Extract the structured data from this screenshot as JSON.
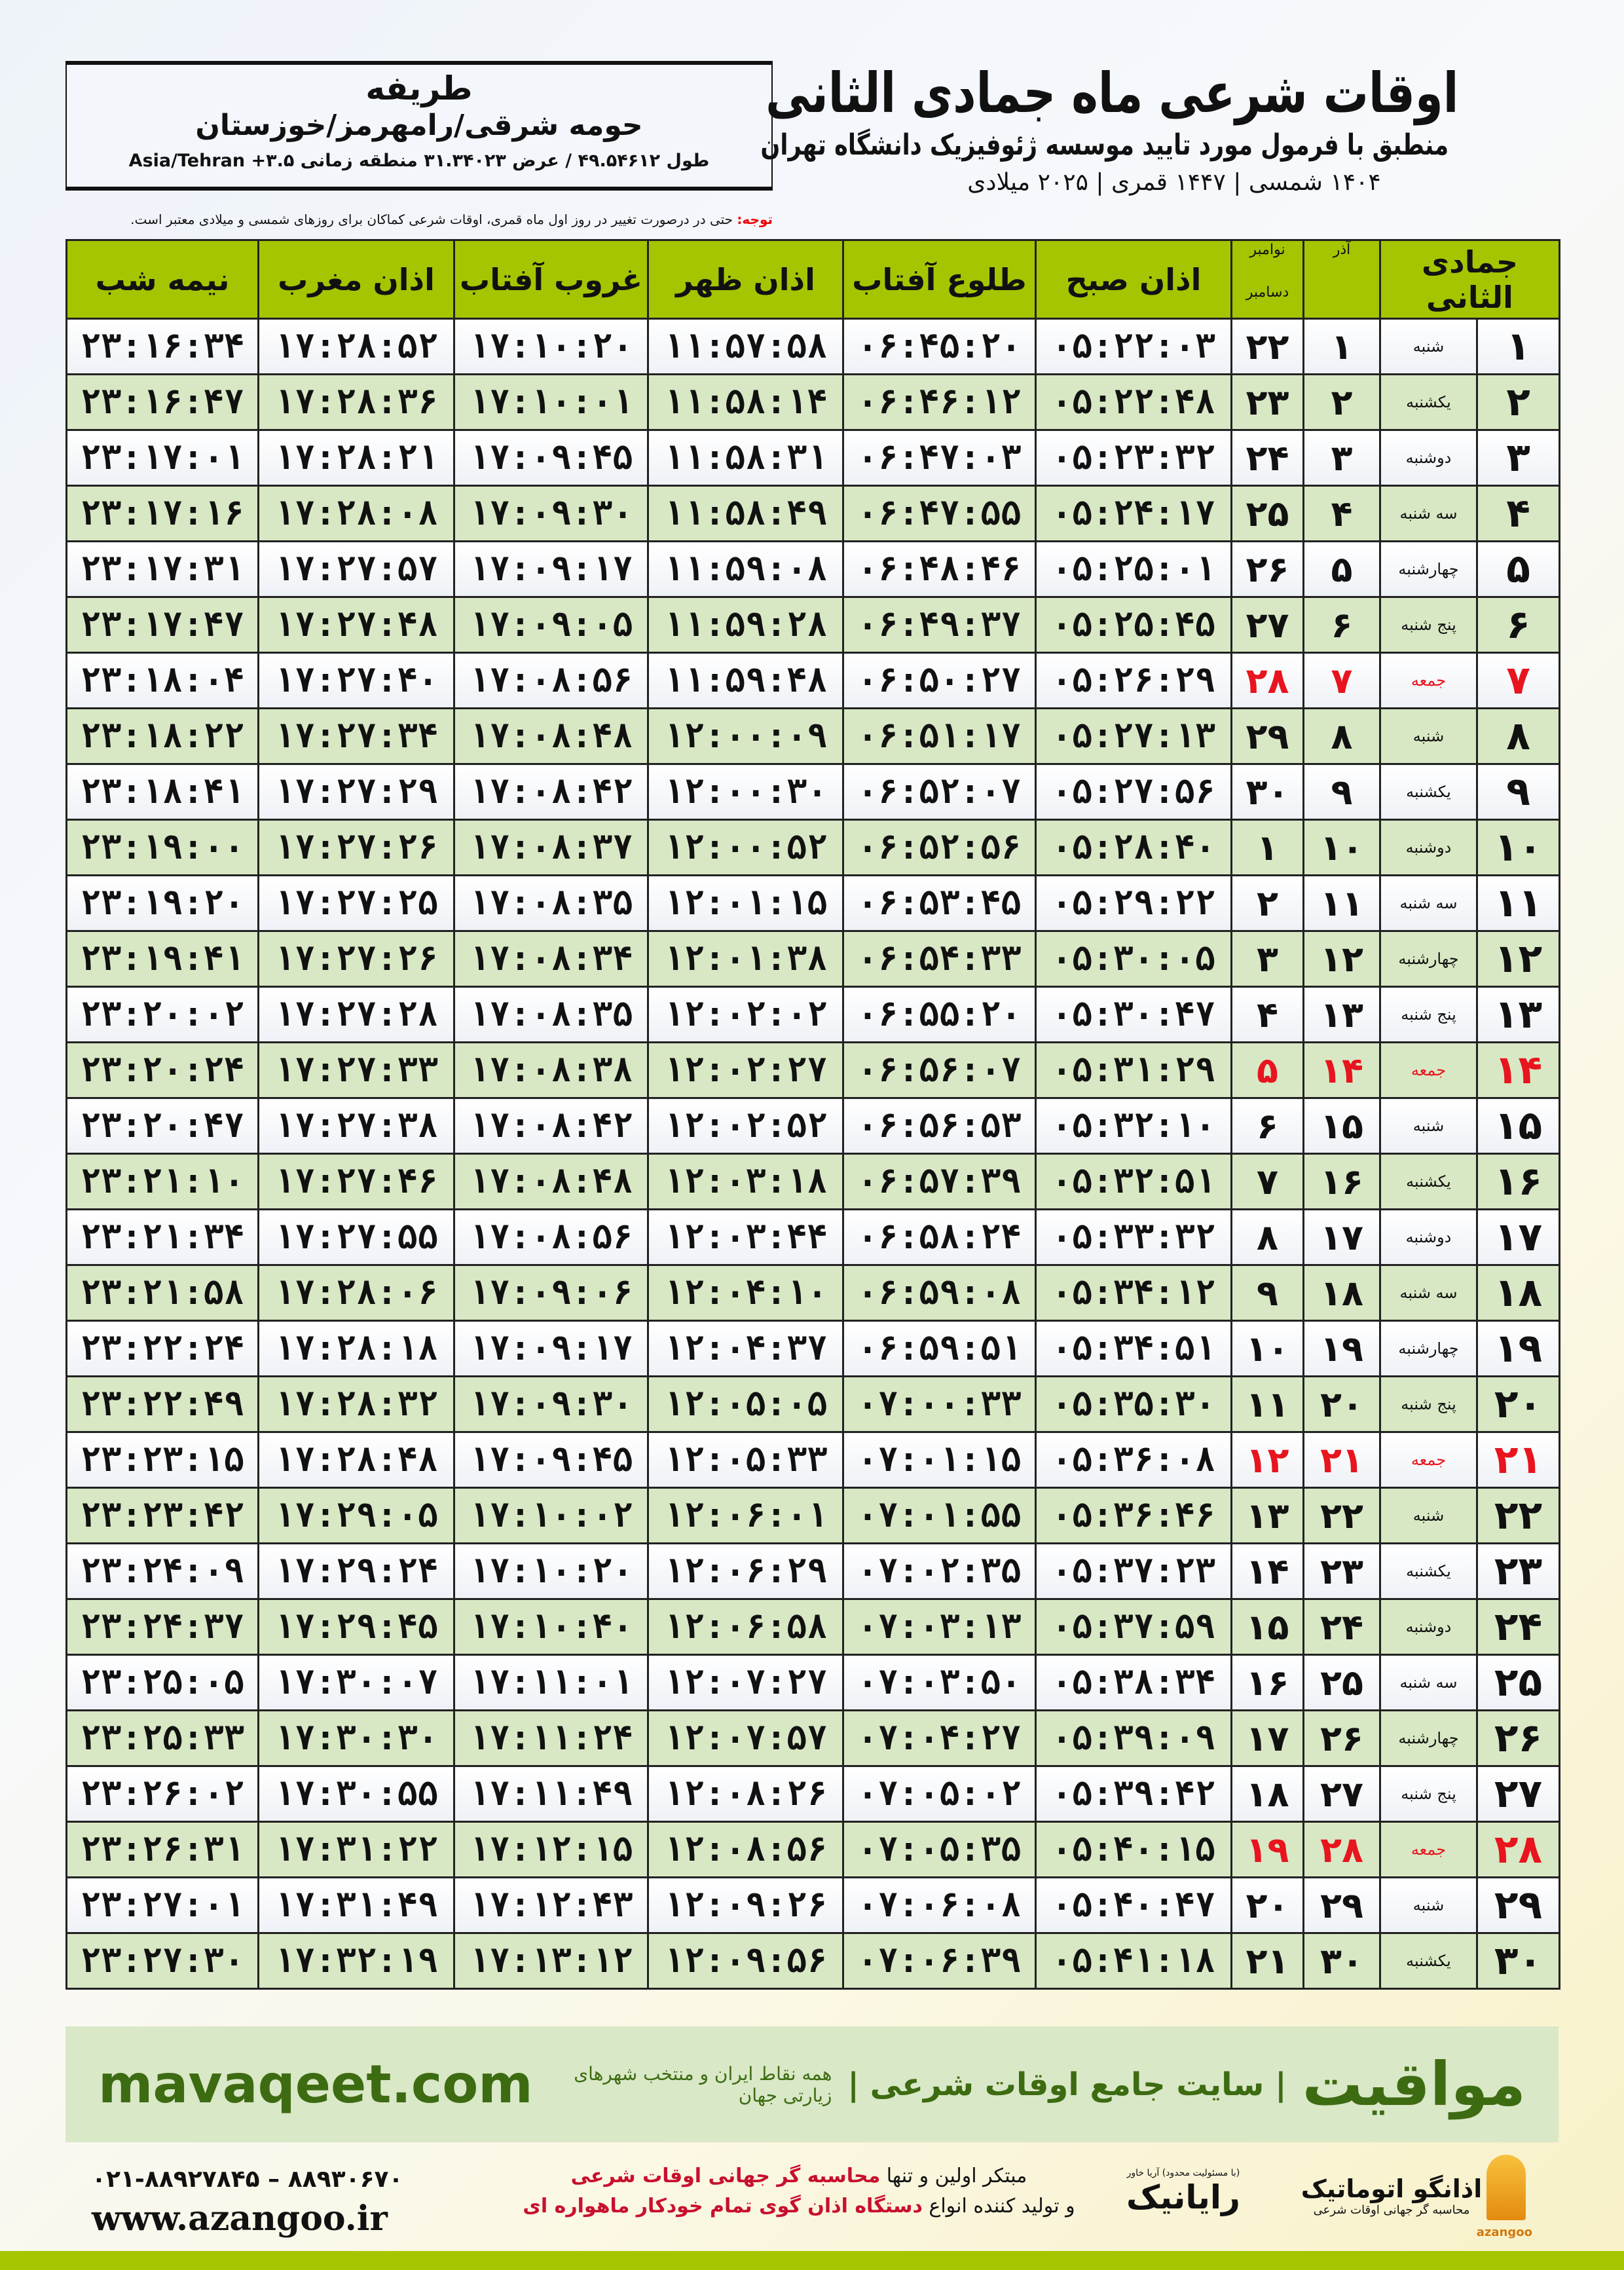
{
  "location": {
    "city": "طریفه",
    "region": "حومه شرقی/رامهرمز/خوزستان",
    "coords": "طول ۴۹.۵۴۶۱۲ / عرض ۳۱.۳۴۰۲۳ منطقه زمانی ۳.۵+ Asia/Tehran"
  },
  "title": {
    "main": "اوقات شرعی ماه جمادی الثانی",
    "subtitle": "منطبق با فرمول مورد تایید موسسه ژئوفیزیک دانشگاه تهران",
    "years": "۱۴۰۴ شمسی | ۱۴۴۷ قمری | ۲۰۲۵ میلادی"
  },
  "note": {
    "label": "توجه:",
    "text": " حتی در درصورت تغییر در روز اول ماه قمری، اوقات شرعی کماکان برای روزهای شمسی و میلادی معتبر است."
  },
  "table": {
    "headers": {
      "hijri": "جمادی الثانی",
      "azar": "آذر",
      "nov": "نوامبر",
      "dec": "دسامبر",
      "fajr": "اذان صبح",
      "sunrise": "طلوع آفتاب",
      "dhuhr": "اذان ظهر",
      "sunset": "غروب آفتاب",
      "maghrib": "اذان مغرب",
      "midnight": "نیمه شب"
    },
    "friday_color": "#e8141e",
    "rows": [
      [
        "۱",
        "شنبه",
        "۱",
        "۲۲",
        "۰۵:۲۲:۰۳",
        "۰۶:۴۵:۲۰",
        "۱۱:۵۷:۵۸",
        "۱۷:۱۰:۲۰",
        "۱۷:۲۸:۵۲",
        "۲۳:۱۶:۳۴"
      ],
      [
        "۲",
        "یکشنبه",
        "۲",
        "۲۳",
        "۰۵:۲۲:۴۸",
        "۰۶:۴۶:۱۲",
        "۱۱:۵۸:۱۴",
        "۱۷:۱۰:۰۱",
        "۱۷:۲۸:۳۶",
        "۲۳:۱۶:۴۷"
      ],
      [
        "۳",
        "دوشنبه",
        "۳",
        "۲۴",
        "۰۵:۲۳:۳۲",
        "۰۶:۴۷:۰۳",
        "۱۱:۵۸:۳۱",
        "۱۷:۰۹:۴۵",
        "۱۷:۲۸:۲۱",
        "۲۳:۱۷:۰۱"
      ],
      [
        "۴",
        "سه شنبه",
        "۴",
        "۲۵",
        "۰۵:۲۴:۱۷",
        "۰۶:۴۷:۵۵",
        "۱۱:۵۸:۴۹",
        "۱۷:۰۹:۳۰",
        "۱۷:۲۸:۰۸",
        "۲۳:۱۷:۱۶"
      ],
      [
        "۵",
        "چهارشنبه",
        "۵",
        "۲۶",
        "۰۵:۲۵:۰۱",
        "۰۶:۴۸:۴۶",
        "۱۱:۵۹:۰۸",
        "۱۷:۰۹:۱۷",
        "۱۷:۲۷:۵۷",
        "۲۳:۱۷:۳۱"
      ],
      [
        "۶",
        "پنج شنبه",
        "۶",
        "۲۷",
        "۰۵:۲۵:۴۵",
        "۰۶:۴۹:۳۷",
        "۱۱:۵۹:۲۸",
        "۱۷:۰۹:۰۵",
        "۱۷:۲۷:۴۸",
        "۲۳:۱۷:۴۷"
      ],
      [
        "۷",
        "جمعه",
        "۷",
        "۲۸",
        "۰۵:۲۶:۲۹",
        "۰۶:۵۰:۲۷",
        "۱۱:۵۹:۴۸",
        "۱۷:۰۸:۵۶",
        "۱۷:۲۷:۴۰",
        "۲۳:۱۸:۰۴"
      ],
      [
        "۸",
        "شنبه",
        "۸",
        "۲۹",
        "۰۵:۲۷:۱۳",
        "۰۶:۵۱:۱۷",
        "۱۲:۰۰:۰۹",
        "۱۷:۰۸:۴۸",
        "۱۷:۲۷:۳۴",
        "۲۳:۱۸:۲۲"
      ],
      [
        "۹",
        "یکشنبه",
        "۹",
        "۳۰",
        "۰۵:۲۷:۵۶",
        "۰۶:۵۲:۰۷",
        "۱۲:۰۰:۳۰",
        "۱۷:۰۸:۴۲",
        "۱۷:۲۷:۲۹",
        "۲۳:۱۸:۴۱"
      ],
      [
        "۱۰",
        "دوشنبه",
        "۱۰",
        "۱",
        "۰۵:۲۸:۴۰",
        "۰۶:۵۲:۵۶",
        "۱۲:۰۰:۵۲",
        "۱۷:۰۸:۳۷",
        "۱۷:۲۷:۲۶",
        "۲۳:۱۹:۰۰"
      ],
      [
        "۱۱",
        "سه شنبه",
        "۱۱",
        "۲",
        "۰۵:۲۹:۲۲",
        "۰۶:۵۳:۴۵",
        "۱۲:۰۱:۱۵",
        "۱۷:۰۸:۳۵",
        "۱۷:۲۷:۲۵",
        "۲۳:۱۹:۲۰"
      ],
      [
        "۱۲",
        "چهارشنبه",
        "۱۲",
        "۳",
        "۰۵:۳۰:۰۵",
        "۰۶:۵۴:۳۳",
        "۱۲:۰۱:۳۸",
        "۱۷:۰۸:۳۴",
        "۱۷:۲۷:۲۶",
        "۲۳:۱۹:۴۱"
      ],
      [
        "۱۳",
        "پنج شنبه",
        "۱۳",
        "۴",
        "۰۵:۳۰:۴۷",
        "۰۶:۵۵:۲۰",
        "۱۲:۰۲:۰۲",
        "۱۷:۰۸:۳۵",
        "۱۷:۲۷:۲۸",
        "۲۳:۲۰:۰۲"
      ],
      [
        "۱۴",
        "جمعه",
        "۱۴",
        "۵",
        "۰۵:۳۱:۲۹",
        "۰۶:۵۶:۰۷",
        "۱۲:۰۲:۲۷",
        "۱۷:۰۸:۳۸",
        "۱۷:۲۷:۳۳",
        "۲۳:۲۰:۲۴"
      ],
      [
        "۱۵",
        "شنبه",
        "۱۵",
        "۶",
        "۰۵:۳۲:۱۰",
        "۰۶:۵۶:۵۳",
        "۱۲:۰۲:۵۲",
        "۱۷:۰۸:۴۲",
        "۱۷:۲۷:۳۸",
        "۲۳:۲۰:۴۷"
      ],
      [
        "۱۶",
        "یکشنبه",
        "۱۶",
        "۷",
        "۰۵:۳۲:۵۱",
        "۰۶:۵۷:۳۹",
        "۱۲:۰۳:۱۸",
        "۱۷:۰۸:۴۸",
        "۱۷:۲۷:۴۶",
        "۲۳:۲۱:۱۰"
      ],
      [
        "۱۷",
        "دوشنبه",
        "۱۷",
        "۸",
        "۰۵:۳۳:۳۲",
        "۰۶:۵۸:۲۴",
        "۱۲:۰۳:۴۴",
        "۱۷:۰۸:۵۶",
        "۱۷:۲۷:۵۵",
        "۲۳:۲۱:۳۴"
      ],
      [
        "۱۸",
        "سه شنبه",
        "۱۸",
        "۹",
        "۰۵:۳۴:۱۲",
        "۰۶:۵۹:۰۸",
        "۱۲:۰۴:۱۰",
        "۱۷:۰۹:۰۶",
        "۱۷:۲۸:۰۶",
        "۲۳:۲۱:۵۸"
      ],
      [
        "۱۹",
        "چهارشنبه",
        "۱۹",
        "۱۰",
        "۰۵:۳۴:۵۱",
        "۰۶:۵۹:۵۱",
        "۱۲:۰۴:۳۷",
        "۱۷:۰۹:۱۷",
        "۱۷:۲۸:۱۸",
        "۲۳:۲۲:۲۴"
      ],
      [
        "۲۰",
        "پنج شنبه",
        "۲۰",
        "۱۱",
        "۰۵:۳۵:۳۰",
        "۰۷:۰۰:۳۳",
        "۱۲:۰۵:۰۵",
        "۱۷:۰۹:۳۰",
        "۱۷:۲۸:۳۲",
        "۲۳:۲۲:۴۹"
      ],
      [
        "۲۱",
        "جمعه",
        "۲۱",
        "۱۲",
        "۰۵:۳۶:۰۸",
        "۰۷:۰۱:۱۵",
        "۱۲:۰۵:۳۳",
        "۱۷:۰۹:۴۵",
        "۱۷:۲۸:۴۸",
        "۲۳:۲۳:۱۵"
      ],
      [
        "۲۲",
        "شنبه",
        "۲۲",
        "۱۳",
        "۰۵:۳۶:۴۶",
        "۰۷:۰۱:۵۵",
        "۱۲:۰۶:۰۱",
        "۱۷:۱۰:۰۲",
        "۱۷:۲۹:۰۵",
        "۲۳:۲۳:۴۲"
      ],
      [
        "۲۳",
        "یکشنبه",
        "۲۳",
        "۱۴",
        "۰۵:۳۷:۲۳",
        "۰۷:۰۲:۳۵",
        "۱۲:۰۶:۲۹",
        "۱۷:۱۰:۲۰",
        "۱۷:۲۹:۲۴",
        "۲۳:۲۴:۰۹"
      ],
      [
        "۲۴",
        "دوشنبه",
        "۲۴",
        "۱۵",
        "۰۵:۳۷:۵۹",
        "۰۷:۰۳:۱۳",
        "۱۲:۰۶:۵۸",
        "۱۷:۱۰:۴۰",
        "۱۷:۲۹:۴۵",
        "۲۳:۲۴:۳۷"
      ],
      [
        "۲۵",
        "سه شنبه",
        "۲۵",
        "۱۶",
        "۰۵:۳۸:۳۴",
        "۰۷:۰۳:۵۰",
        "۱۲:۰۷:۲۷",
        "۱۷:۱۱:۰۱",
        "۱۷:۳۰:۰۷",
        "۲۳:۲۵:۰۵"
      ],
      [
        "۲۶",
        "چهارشنبه",
        "۲۶",
        "۱۷",
        "۰۵:۳۹:۰۹",
        "۰۷:۰۴:۲۷",
        "۱۲:۰۷:۵۷",
        "۱۷:۱۱:۲۴",
        "۱۷:۳۰:۳۰",
        "۲۳:۲۵:۳۳"
      ],
      [
        "۲۷",
        "پنج شنبه",
        "۲۷",
        "۱۸",
        "۰۵:۳۹:۴۲",
        "۰۷:۰۵:۰۲",
        "۱۲:۰۸:۲۶",
        "۱۷:۱۱:۴۹",
        "۱۷:۳۰:۵۵",
        "۲۳:۲۶:۰۲"
      ],
      [
        "۲۸",
        "جمعه",
        "۲۸",
        "۱۹",
        "۰۵:۴۰:۱۵",
        "۰۷:۰۵:۳۵",
        "۱۲:۰۸:۵۶",
        "۱۷:۱۲:۱۵",
        "۱۷:۳۱:۲۲",
        "۲۳:۲۶:۳۱"
      ],
      [
        "۲۹",
        "شنبه",
        "۲۹",
        "۲۰",
        "۰۵:۴۰:۴۷",
        "۰۷:۰۶:۰۸",
        "۱۲:۰۹:۲۶",
        "۱۷:۱۲:۴۳",
        "۱۷:۳۱:۴۹",
        "۲۳:۲۷:۰۱"
      ],
      [
        "۳۰",
        "یکشنبه",
        "۳۰",
        "۲۱",
        "۰۵:۴۱:۱۸",
        "۰۷:۰۶:۳۹",
        "۱۲:۰۹:۵۶",
        "۱۷:۱۳:۱۲",
        "۱۷:۳۲:۱۹",
        "۲۳:۲۷:۳۰"
      ]
    ]
  },
  "banner": {
    "brand": "مواقیت",
    "tagline": "| سایت جامع اوقات شرعی |",
    "tagline2": "همه نقاط ایران و منتخب شهرهای زیارتی جهان",
    "site": "mavaqeet.com"
  },
  "footer": {
    "phone": "۰۲۱-۸۸۹۲۷۸۴۵ – ۸۸۹۳۰۶۷۰",
    "web": "www.azangoo.ir",
    "line1_a": "مبتکر اولین و تنها ",
    "line1_b": "محاسبه گر جهانی اوقات شرعی",
    "line2_a": "و تولید کننده انواع ",
    "line2_b": "دستگاه اذان گوی تمام خودکار ماهواره ای",
    "logo_rayanik": "رایانیک",
    "logo_rayanik_small": "(با مسئولیت محدود) آریا خاور",
    "logo_azangoo": "اذانگو اتوماتیک",
    "logo_azangoo_sub": "محاسبه گر جهانی اوقات شرعی",
    "logo_azangoo_en": "azangoo"
  }
}
